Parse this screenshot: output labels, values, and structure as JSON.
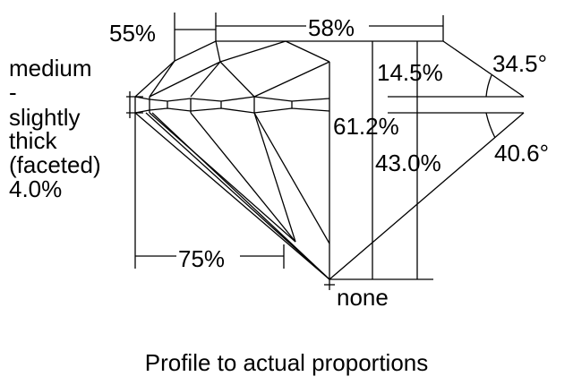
{
  "labels": {
    "crown_height_star": "55%",
    "table": "58%",
    "crown_height": "14.5%",
    "crown_angle": "34.5°",
    "total_depth": "61.2%",
    "pavilion_depth": "43.0%",
    "pavilion_angle": "40.6°",
    "lower_half": "75%",
    "culet": "none",
    "girdle": [
      "medium",
      "-",
      "slightly",
      "thick",
      "(faceted)",
      "4.0%"
    ]
  },
  "caption": "Profile to actual proportions"
}
